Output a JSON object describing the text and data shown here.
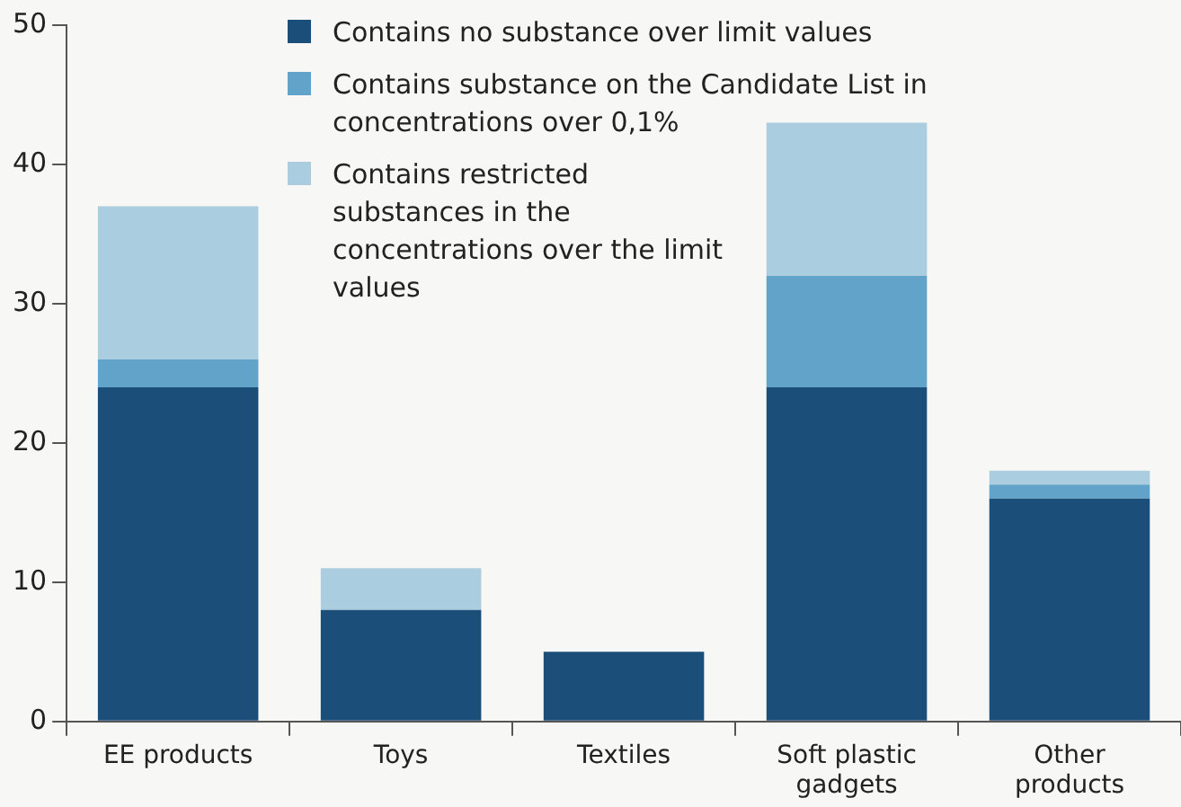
{
  "chart_data": {
    "type": "bar",
    "stacked": true,
    "categories": [
      "EE products",
      "Toys",
      "Textiles",
      "Soft plastic gadgets",
      "Other products"
    ],
    "series": [
      {
        "name": "Contains no substance over limit values",
        "color": "#1c4e7a",
        "values": [
          24,
          8,
          5,
          24,
          16
        ]
      },
      {
        "name": "Contains substance on the Candidate List in concentrations over 0,1%",
        "color": "#62a4c9",
        "values": [
          2,
          0,
          0,
          8,
          1
        ]
      },
      {
        "name": "Contains restricted substances in the concentrations over the limit values",
        "color": "#abcde0",
        "values": [
          11,
          3,
          0,
          11,
          1
        ]
      }
    ],
    "ylim": [
      0,
      50
    ],
    "yticks": [
      0,
      10,
      20,
      30,
      40,
      50
    ],
    "grid": false,
    "legend": "top"
  }
}
